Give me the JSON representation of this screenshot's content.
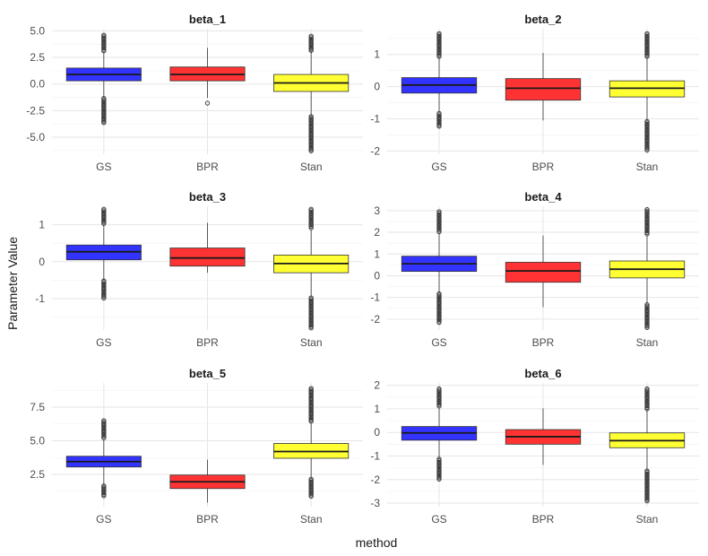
{
  "chart_data": {
    "type": "box",
    "xlabel": "method",
    "ylabel": "Parameter Value",
    "categories": [
      "GS",
      "BPR",
      "Stan"
    ],
    "colors": {
      "GS": "#3333ff",
      "BPR": "#ff3333",
      "Stan": "#ffff33"
    },
    "grid": true,
    "panels": [
      {
        "title": "beta_1",
        "ylim": [
          -6.6,
          5.2
        ],
        "yticks": [
          -5,
          -2.5,
          0,
          2.5,
          5
        ],
        "ytick_labels": [
          "-5.0",
          "-2.5",
          "0.0",
          "2.5",
          "5.0"
        ],
        "boxes": [
          {
            "method": "GS",
            "q1": 0.3,
            "median": 0.9,
            "q3": 1.5,
            "whisker_low": -1.3,
            "whisker_high": 3.0,
            "outliers_low": [
              -1.35,
              -3.7
            ],
            "outliers_high": [
              3.05,
              4.6
            ]
          },
          {
            "method": "BPR",
            "q1": 0.3,
            "median": 0.9,
            "q3": 1.6,
            "whisker_low": -1.3,
            "whisker_high": 3.4,
            "outliers_low": [
              -1.8
            ],
            "outliers_high": []
          },
          {
            "method": "Stan",
            "q1": -0.7,
            "median": 0.1,
            "q3": 0.9,
            "whisker_low": -3.0,
            "whisker_high": 3.1,
            "outliers_low": [
              -3.05,
              -6.3
            ],
            "outliers_high": [
              3.15,
              4.5
            ]
          }
        ]
      },
      {
        "title": "beta_2",
        "ylim": [
          -2.1,
          1.8
        ],
        "yticks": [
          -2,
          -1,
          0,
          1
        ],
        "ytick_labels": [
          "-2",
          "-1",
          "0",
          "1"
        ],
        "boxes": [
          {
            "method": "GS",
            "q1": -0.2,
            "median": 0.05,
            "q3": 0.28,
            "whisker_low": -0.8,
            "whisker_high": 0.9,
            "outliers_low": [
              -0.83,
              -1.25
            ],
            "outliers_high": [
              0.93,
              1.65
            ]
          },
          {
            "method": "BPR",
            "q1": -0.42,
            "median": -0.05,
            "q3": 0.25,
            "whisker_low": -1.05,
            "whisker_high": 1.05,
            "outliers_low": [],
            "outliers_high": []
          },
          {
            "method": "Stan",
            "q1": -0.32,
            "median": -0.05,
            "q3": 0.18,
            "whisker_low": -1.05,
            "whisker_high": 0.9,
            "outliers_low": [
              -1.08,
              -2.0
            ],
            "outliers_high": [
              0.93,
              1.65
            ]
          }
        ]
      },
      {
        "title": "beta_3",
        "ylim": [
          -1.85,
          1.5
        ],
        "yticks": [
          -1,
          0,
          1
        ],
        "ytick_labels": [
          "-1",
          "0",
          "1"
        ],
        "boxes": [
          {
            "method": "GS",
            "q1": 0.05,
            "median": 0.27,
            "q3": 0.45,
            "whisker_low": -0.5,
            "whisker_high": 1.0,
            "outliers_low": [
              -0.52,
              -1.0
            ],
            "outliers_high": [
              1.02,
              1.42
            ]
          },
          {
            "method": "BPR",
            "q1": -0.12,
            "median": 0.1,
            "q3": 0.37,
            "whisker_low": -0.3,
            "whisker_high": 1.05,
            "outliers_low": [],
            "outliers_high": []
          },
          {
            "method": "Stan",
            "q1": -0.3,
            "median": -0.05,
            "q3": 0.18,
            "whisker_low": -0.95,
            "whisker_high": 0.85,
            "outliers_low": [
              -0.98,
              -1.8
            ],
            "outliers_high": [
              0.88,
              1.42
            ]
          }
        ]
      },
      {
        "title": "beta_4",
        "ylim": [
          -2.5,
          3.2
        ],
        "yticks": [
          -2,
          -1,
          0,
          1,
          2,
          3
        ],
        "ytick_labels": [
          "-2",
          "-1",
          "0",
          "1",
          "2",
          "3"
        ],
        "boxes": [
          {
            "method": "GS",
            "q1": 0.2,
            "median": 0.55,
            "q3": 0.9,
            "whisker_low": -0.8,
            "whisker_high": 1.95,
            "outliers_low": [
              -0.83,
              -1.5,
              -2.2
            ],
            "outliers_high": [
              1.98,
              2.95
            ]
          },
          {
            "method": "BPR",
            "q1": -0.3,
            "median": 0.22,
            "q3": 0.62,
            "whisker_low": -1.45,
            "whisker_high": 1.85,
            "outliers_low": [],
            "outliers_high": []
          },
          {
            "method": "Stan",
            "q1": -0.1,
            "median": 0.3,
            "q3": 0.68,
            "whisker_low": -1.3,
            "whisker_high": 1.85,
            "outliers_low": [
              -1.33,
              -2.4
            ],
            "outliers_high": [
              1.88,
              3.05
            ]
          }
        ]
      },
      {
        "title": "beta_5",
        "ylim": [
          0.1,
          9.3
        ],
        "yticks": [
          2.5,
          5,
          7.5
        ],
        "ytick_labels": [
          "2.5",
          "5.0",
          "7.5"
        ],
        "boxes": [
          {
            "method": "GS",
            "q1": 3.05,
            "median": 3.45,
            "q3": 3.85,
            "whisker_low": 1.7,
            "whisker_high": 5.1,
            "outliers_low": [
              1.65,
              0.9
            ],
            "outliers_high": [
              5.15,
              6.5
            ]
          },
          {
            "method": "BPR",
            "q1": 1.45,
            "median": 1.95,
            "q3": 2.45,
            "whisker_low": 0.4,
            "whisker_high": 3.6,
            "outliers_low": [],
            "outliers_high": []
          },
          {
            "method": "Stan",
            "q1": 3.7,
            "median": 4.2,
            "q3": 4.8,
            "whisker_low": 2.2,
            "whisker_high": 6.3,
            "outliers_low": [
              2.15,
              0.8
            ],
            "outliers_high": [
              6.35,
              8.9
            ]
          }
        ]
      },
      {
        "title": "beta_6",
        "ylim": [
          -3.15,
          2.1
        ],
        "yticks": [
          -3,
          -2,
          -1,
          0,
          1,
          2
        ],
        "ytick_labels": [
          "-3",
          "-2",
          "-1",
          "0",
          "1",
          "2"
        ],
        "boxes": [
          {
            "method": "GS",
            "q1": -0.33,
            "median": -0.02,
            "q3": 0.25,
            "whisker_low": -1.1,
            "whisker_high": 1.05,
            "outliers_low": [
              -1.13,
              -2.0
            ],
            "outliers_high": [
              1.08,
              1.85
            ]
          },
          {
            "method": "BPR",
            "q1": -0.5,
            "median": -0.18,
            "q3": 0.12,
            "whisker_low": -1.38,
            "whisker_high": 1.02,
            "outliers_low": [],
            "outliers_high": []
          },
          {
            "method": "Stan",
            "q1": -0.65,
            "median": -0.35,
            "q3": -0.02,
            "whisker_low": -1.6,
            "whisker_high": 0.95,
            "outliers_low": [
              -1.63,
              -2.95
            ],
            "outliers_high": [
              0.98,
              1.85
            ]
          }
        ]
      }
    ]
  }
}
